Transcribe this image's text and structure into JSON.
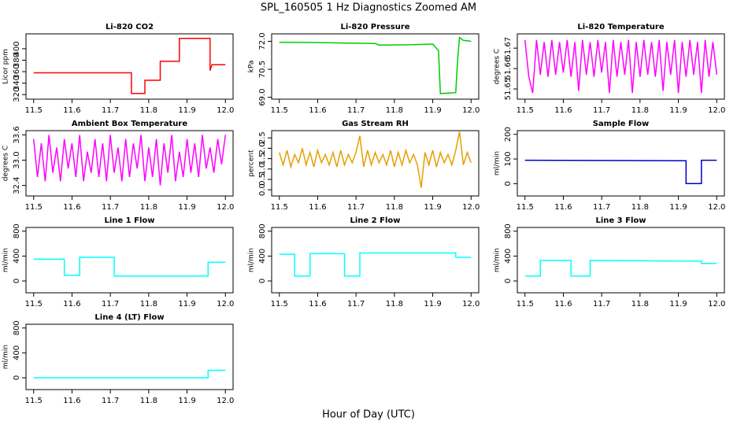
{
  "title": "SPL_160505  1 Hz Diagnostics Zoomed AM",
  "x_label": "Hour of Day (UTC)",
  "chart_data": [
    {
      "type": "line",
      "title": "Li-820 CO2",
      "y_label": "Licor ppm",
      "color": "#ff0000",
      "x": [
        11.5,
        11.755,
        11.755,
        11.79,
        11.79,
        11.83,
        11.83,
        11.88,
        11.88,
        11.96,
        11.96,
        11.965,
        12.0
      ],
      "values": [
        358,
        358,
        322,
        322,
        345,
        345,
        378,
        378,
        418,
        418,
        362,
        372,
        372
      ],
      "xlim": [
        11.48,
        12.02
      ],
      "xticks": [
        11.5,
        11.6,
        11.7,
        11.8,
        11.9,
        {
          "value": 12,
          "label": "12.0"
        }
      ],
      "ylim": [
        312,
        426
      ],
      "yticks": [
        320,
        340,
        360,
        380,
        400
      ]
    },
    {
      "type": "line",
      "title": "Li-820 Pressure",
      "y_label": "kPa",
      "color": "#00cc00",
      "x": [
        11.5,
        11.6,
        11.7,
        11.75,
        11.76,
        11.85,
        11.9,
        11.915,
        11.92,
        11.96,
        11.965,
        11.97,
        11.98,
        12.0
      ],
      "values": [
        71.95,
        71.93,
        71.9,
        71.88,
        71.8,
        71.82,
        71.85,
        71.5,
        69.2,
        69.25,
        71.0,
        72.2,
        72.05,
        72.0
      ],
      "xlim": [
        11.48,
        12.02
      ],
      "xticks": [
        11.5,
        11.6,
        11.7,
        11.8,
        11.9,
        {
          "value": 12,
          "label": "12.0"
        }
      ],
      "ylim": [
        68.9,
        72.4
      ],
      "yticks": [
        {
          "value": 69,
          "label": "69.0"
        },
        70.5,
        {
          "value": 72,
          "label": "72.0"
        }
      ]
    },
    {
      "type": "line",
      "title": "Li-820 Temperature",
      "y_label": "degrees C",
      "color": "#ff00ff",
      "x": [
        11.5,
        11.51,
        11.52,
        11.53,
        11.54,
        11.55,
        11.56,
        11.57,
        11.58,
        11.59,
        11.6,
        11.61,
        11.62,
        11.63,
        11.64,
        11.65,
        11.66,
        11.67,
        11.68,
        11.69,
        11.7,
        11.71,
        11.72,
        11.73,
        11.74,
        11.75,
        11.76,
        11.77,
        11.78,
        11.79,
        11.8,
        11.81,
        11.82,
        11.83,
        11.84,
        11.85,
        11.86,
        11.87,
        11.88,
        11.89,
        11.9,
        11.91,
        11.92,
        11.93,
        11.94,
        11.95,
        11.96,
        11.97,
        11.98,
        11.99,
        12.0
      ],
      "values": [
        51.674,
        51.656,
        51.648,
        51.674,
        51.657,
        51.673,
        51.656,
        51.674,
        51.657,
        51.673,
        51.658,
        51.674,
        51.656,
        51.673,
        51.649,
        51.674,
        51.657,
        51.673,
        51.656,
        51.674,
        51.658,
        51.673,
        51.648,
        51.674,
        51.656,
        51.673,
        51.657,
        51.674,
        51.648,
        51.673,
        51.656,
        51.674,
        51.657,
        51.673,
        51.656,
        51.674,
        51.649,
        51.673,
        51.657,
        51.674,
        51.648,
        51.673,
        51.656,
        51.674,
        51.657,
        51.673,
        51.648,
        51.674,
        51.656,
        51.673,
        51.657
      ],
      "xlim": [
        11.48,
        12.02
      ],
      "xticks": [
        11.5,
        11.6,
        11.7,
        11.8,
        11.9,
        {
          "value": 12,
          "label": "12.0"
        }
      ],
      "ylim": [
        51.645,
        51.677
      ],
      "yticks": [
        51.65,
        51.66,
        51.67
      ]
    },
    {
      "type": "line",
      "title": "Ambient Box Temperature",
      "y_label": "degrees C",
      "color": "#ff00ff",
      "x": [
        11.5,
        11.51,
        11.52,
        11.53,
        11.54,
        11.55,
        11.56,
        11.57,
        11.58,
        11.59,
        11.6,
        11.61,
        11.62,
        11.63,
        11.64,
        11.65,
        11.66,
        11.67,
        11.68,
        11.69,
        11.7,
        11.71,
        11.72,
        11.73,
        11.74,
        11.75,
        11.76,
        11.77,
        11.78,
        11.79,
        11.8,
        11.81,
        11.82,
        11.83,
        11.84,
        11.85,
        11.86,
        11.87,
        11.88,
        11.89,
        11.9,
        11.91,
        11.92,
        11.93,
        11.94,
        11.95,
        11.96,
        11.97,
        11.98,
        11.99,
        12.0
      ],
      "values": [
        33.5,
        32.6,
        33.4,
        32.5,
        33.6,
        32.7,
        33.3,
        32.5,
        33.5,
        32.8,
        33.4,
        32.6,
        33.6,
        32.5,
        33.2,
        32.7,
        33.5,
        32.6,
        33.4,
        32.5,
        33.6,
        32.7,
        33.3,
        32.5,
        33.5,
        32.6,
        33.4,
        32.8,
        33.6,
        32.5,
        33.3,
        32.6,
        33.5,
        32.4,
        33.4,
        32.7,
        33.6,
        32.5,
        33.2,
        32.6,
        33.5,
        32.7,
        33.4,
        32.6,
        33.6,
        32.8,
        33.3,
        32.7,
        33.5,
        32.9,
        33.6
      ],
      "xlim": [
        11.48,
        12.02
      ],
      "xticks": [
        11.5,
        11.6,
        11.7,
        11.8,
        11.9,
        {
          "value": 12,
          "label": "12.0"
        }
      ],
      "ylim": [
        32.15,
        33.7
      ],
      "yticks": [
        32.4,
        {
          "value": 33,
          "label": "33.0"
        },
        33.6
      ]
    },
    {
      "type": "line",
      "title": "Gas Stream RH",
      "y_label": "percent",
      "color": "#e69f00",
      "x": [
        11.5,
        11.51,
        11.52,
        11.53,
        11.54,
        11.55,
        11.56,
        11.57,
        11.58,
        11.59,
        11.6,
        11.61,
        11.62,
        11.63,
        11.64,
        11.65,
        11.66,
        11.67,
        11.68,
        11.69,
        11.7,
        11.71,
        11.72,
        11.73,
        11.74,
        11.75,
        11.76,
        11.77,
        11.78,
        11.79,
        11.8,
        11.81,
        11.82,
        11.83,
        11.84,
        11.85,
        11.86,
        11.87,
        11.88,
        11.89,
        11.9,
        11.91,
        11.92,
        11.93,
        11.94,
        11.95,
        11.96,
        11.97,
        11.98,
        11.99,
        12.0
      ],
      "values": [
        1.8,
        1.2,
        1.9,
        1.1,
        1.7,
        1.3,
        2.0,
        1.2,
        1.8,
        1.1,
        1.9,
        1.3,
        1.7,
        1.2,
        1.8,
        1.1,
        1.9,
        1.2,
        1.7,
        1.3,
        1.8,
        2.6,
        1.1,
        1.9,
        1.2,
        1.8,
        1.3,
        1.7,
        1.2,
        1.9,
        1.1,
        1.8,
        1.2,
        1.9,
        1.3,
        1.7,
        1.2,
        0.1,
        1.8,
        1.2,
        1.9,
        1.1,
        1.8,
        1.3,
        1.7,
        1.2,
        1.9,
        2.8,
        1.2,
        1.8,
        1.3
      ],
      "xlim": [
        11.48,
        12.02
      ],
      "xticks": [
        11.5,
        11.6,
        11.7,
        11.8,
        11.9,
        {
          "value": 12,
          "label": "12.0"
        }
      ],
      "ylim": [
        -0.3,
        2.85
      ],
      "yticks": [
        {
          "value": 0,
          "label": "0.0"
        },
        0.5,
        {
          "value": 1,
          "label": "1.0"
        },
        1.5,
        {
          "value": 2,
          "label": "2.0"
        },
        2.5
      ]
    },
    {
      "type": "line",
      "title": "Sample Flow",
      "y_label": "ml/min",
      "color": "#0000cc",
      "x": [
        11.5,
        11.92,
        11.92,
        11.96,
        11.96,
        12.0
      ],
      "values": [
        95,
        93,
        0,
        0,
        95,
        95
      ],
      "xlim": [
        11.48,
        12.02
      ],
      "xticks": [
        11.5,
        11.6,
        11.7,
        11.8,
        11.9,
        {
          "value": 12,
          "label": "12.0"
        }
      ],
      "ylim": [
        -50,
        215
      ],
      "yticks": [
        0,
        100,
        200
      ]
    },
    {
      "type": "line",
      "title": "Line 1 Flow",
      "y_label": "ml/min",
      "color": "#00ffff",
      "x": [
        11.5,
        11.58,
        11.58,
        11.62,
        11.62,
        11.71,
        11.71,
        11.955,
        11.955,
        12.0
      ],
      "values": [
        350,
        350,
        90,
        90,
        380,
        380,
        80,
        80,
        300,
        300
      ],
      "xlim": [
        11.48,
        12.02
      ],
      "xticks": [
        11.5,
        11.6,
        11.7,
        11.8,
        11.9,
        {
          "value": 12,
          "label": "12.0"
        }
      ],
      "ylim": [
        -190,
        860
      ],
      "yticks": [
        0,
        400,
        800
      ]
    },
    {
      "type": "line",
      "title": "Line 2 Flow",
      "y_label": "ml/min",
      "color": "#00ffff",
      "x": [
        11.5,
        11.54,
        11.54,
        11.58,
        11.58,
        11.67,
        11.67,
        11.71,
        11.71,
        11.96,
        11.96,
        12.0
      ],
      "values": [
        430,
        430,
        80,
        80,
        440,
        440,
        80,
        80,
        450,
        450,
        380,
        380
      ],
      "xlim": [
        11.48,
        12.02
      ],
      "xticks": [
        11.5,
        11.6,
        11.7,
        11.8,
        11.9,
        {
          "value": 12,
          "label": "12.0"
        }
      ],
      "ylim": [
        -190,
        860
      ],
      "yticks": [
        0,
        400,
        800
      ]
    },
    {
      "type": "line",
      "title": "Line 3 Flow",
      "y_label": "ml/min",
      "color": "#00ffff",
      "x": [
        11.5,
        11.54,
        11.54,
        11.62,
        11.62,
        11.67,
        11.67,
        11.92,
        11.96,
        11.96,
        12.0
      ],
      "values": [
        80,
        80,
        330,
        330,
        80,
        80,
        330,
        320,
        320,
        280,
        280
      ],
      "xlim": [
        11.48,
        12.02
      ],
      "xticks": [
        11.5,
        11.6,
        11.7,
        11.8,
        11.9,
        {
          "value": 12,
          "label": "12.0"
        }
      ],
      "ylim": [
        -190,
        860
      ],
      "yticks": [
        0,
        400,
        800
      ]
    },
    {
      "type": "line",
      "title": "Line 4 (LT) Flow",
      "y_label": "ml/min",
      "color": "#00ffff",
      "x": [
        11.5,
        11.955,
        11.955,
        12.0
      ],
      "values": [
        0,
        0,
        120,
        120
      ],
      "xlim": [
        11.48,
        12.02
      ],
      "xticks": [
        11.5,
        11.6,
        11.7,
        11.8,
        11.9,
        {
          "value": 12,
          "label": "12.0"
        }
      ],
      "ylim": [
        -190,
        860
      ],
      "yticks": [
        0,
        400,
        800
      ]
    }
  ]
}
